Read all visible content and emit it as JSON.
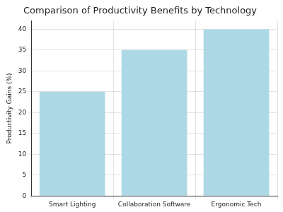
{
  "chart_data": {
    "type": "bar",
    "title": "Comparison of Productivity Benefits by Technology",
    "y_label": "Productivity Gains (%)",
    "categories": [
      "Smart Lighting",
      "Collaboration Software",
      "Ergonomic Tech"
    ],
    "values": [
      25,
      35,
      40
    ],
    "color": "#add8e6",
    "ylim": [
      0,
      42
    ],
    "yticks": [
      0,
      5,
      10,
      15,
      20,
      25,
      30,
      35,
      40
    ],
    "grid": true
  }
}
